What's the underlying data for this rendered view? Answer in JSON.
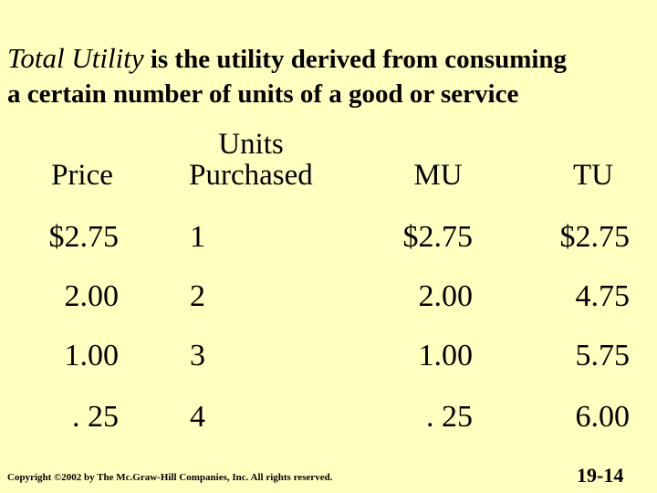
{
  "title": {
    "lead": "Total Utility",
    "rest_line1": " is the utility derived from consuming",
    "line2": "a certain number of units of a good or service"
  },
  "table": {
    "headers": {
      "price": "Price",
      "units_line1": "Units",
      "units_line2": "Purchased",
      "mu": "MU",
      "tu": "TU"
    },
    "rows": [
      {
        "price": "$2.75",
        "units": "1",
        "mu": "$2.75",
        "tu": "$2.75"
      },
      {
        "price": "2.00",
        "units": "2",
        "mu": "2.00",
        "tu": "4.75"
      },
      {
        "price": "1.00",
        "units": "3",
        "mu": "1.00",
        "tu": "5.75"
      },
      {
        "price": ". 25",
        "units": "4",
        "mu": ". 25",
        "tu": "6.00"
      }
    ]
  },
  "footer": {
    "copyright": "Copyright ©2002 by The Mc.Graw-Hill Companies, Inc.  All rights reserved.",
    "page_number": "19-14"
  },
  "colors": {
    "background": "#FFFFC0",
    "text": "#000000"
  }
}
